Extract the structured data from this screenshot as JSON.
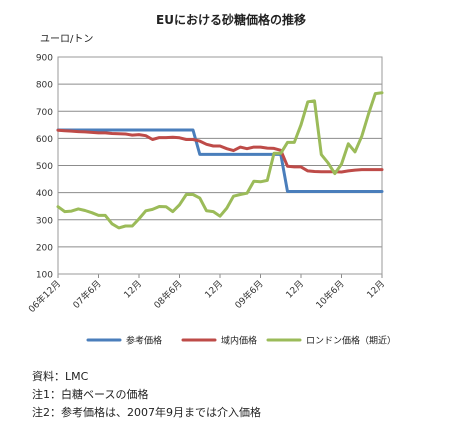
{
  "chart_data": {
    "type": "line",
    "title": "EUにおける砂糖価格の推移",
    "ylabel": "ユーロ/トン",
    "xlabel": "",
    "ylim": [
      100,
      900
    ],
    "yticks": [
      100,
      200,
      300,
      400,
      500,
      600,
      700,
      800,
      900
    ],
    "grid": true,
    "legend_position": "bottom",
    "x_tick_labels": [
      "06年12月",
      "07年6月",
      "12月",
      "08年6月",
      "12月",
      "09年6月",
      "12月",
      "10年6月",
      "12月"
    ],
    "x": [
      "2006-12",
      "2007-01",
      "2007-02",
      "2007-03",
      "2007-04",
      "2007-05",
      "2007-06",
      "2007-07",
      "2007-08",
      "2007-09",
      "2007-10",
      "2007-11",
      "2007-12",
      "2008-01",
      "2008-02",
      "2008-03",
      "2008-04",
      "2008-05",
      "2008-06",
      "2008-07",
      "2008-08",
      "2008-09",
      "2008-10",
      "2008-11",
      "2008-12",
      "2009-01",
      "2009-02",
      "2009-03",
      "2009-04",
      "2009-05",
      "2009-06",
      "2009-07",
      "2009-08",
      "2009-09",
      "2009-10",
      "2009-11",
      "2009-12",
      "2010-01",
      "2010-02",
      "2010-03",
      "2010-04",
      "2010-05",
      "2010-06",
      "2010-07",
      "2010-08",
      "2010-09",
      "2010-10",
      "2010-11",
      "2010-12"
    ],
    "series": [
      {
        "name": "参考価格",
        "color": "#4a7ebb",
        "values": [
          631,
          631,
          631,
          631,
          631,
          631,
          631,
          631,
          631,
          631,
          631,
          631,
          631,
          631,
          631,
          631,
          631,
          631,
          631,
          631,
          631,
          541,
          541,
          541,
          541,
          541,
          541,
          541,
          541,
          541,
          541,
          541,
          541,
          541,
          404,
          404,
          404,
          404,
          404,
          404,
          404,
          404,
          404,
          404,
          404,
          404,
          404,
          404,
          404
        ]
      },
      {
        "name": "域内価格",
        "color": "#be4b48",
        "values": [
          630,
          628,
          627,
          625,
          624,
          622,
          620,
          620,
          618,
          617,
          616,
          612,
          614,
          610,
          596,
          603,
          603,
          604,
          602,
          596,
          596,
          590,
          578,
          572,
          572,
          562,
          555,
          568,
          562,
          568,
          568,
          564,
          563,
          556,
          497,
          495,
          495,
          480,
          478,
          477,
          477,
          477,
          476,
          480,
          483,
          485,
          485,
          485,
          485
        ]
      },
      {
        "name": "ロンドン価格（期近）",
        "color": "#9bbb59",
        "values": [
          348,
          330,
          332,
          340,
          334,
          326,
          316,
          316,
          285,
          270,
          277,
          277,
          303,
          333,
          338,
          349,
          348,
          330,
          355,
          393,
          393,
          380,
          333,
          330,
          313,
          343,
          387,
          393,
          398,
          442,
          440,
          445,
          545,
          545,
          585,
          585,
          650,
          735,
          738,
          540,
          510,
          470,
          505,
          580,
          550,
          608,
          690,
          765,
          768
        ]
      }
    ]
  },
  "notes": {
    "source": "資料：LMC",
    "note1": "注1：白糖ベースの価格",
    "note2": "注2：参考価格は、2007年9月までは介入価格"
  }
}
